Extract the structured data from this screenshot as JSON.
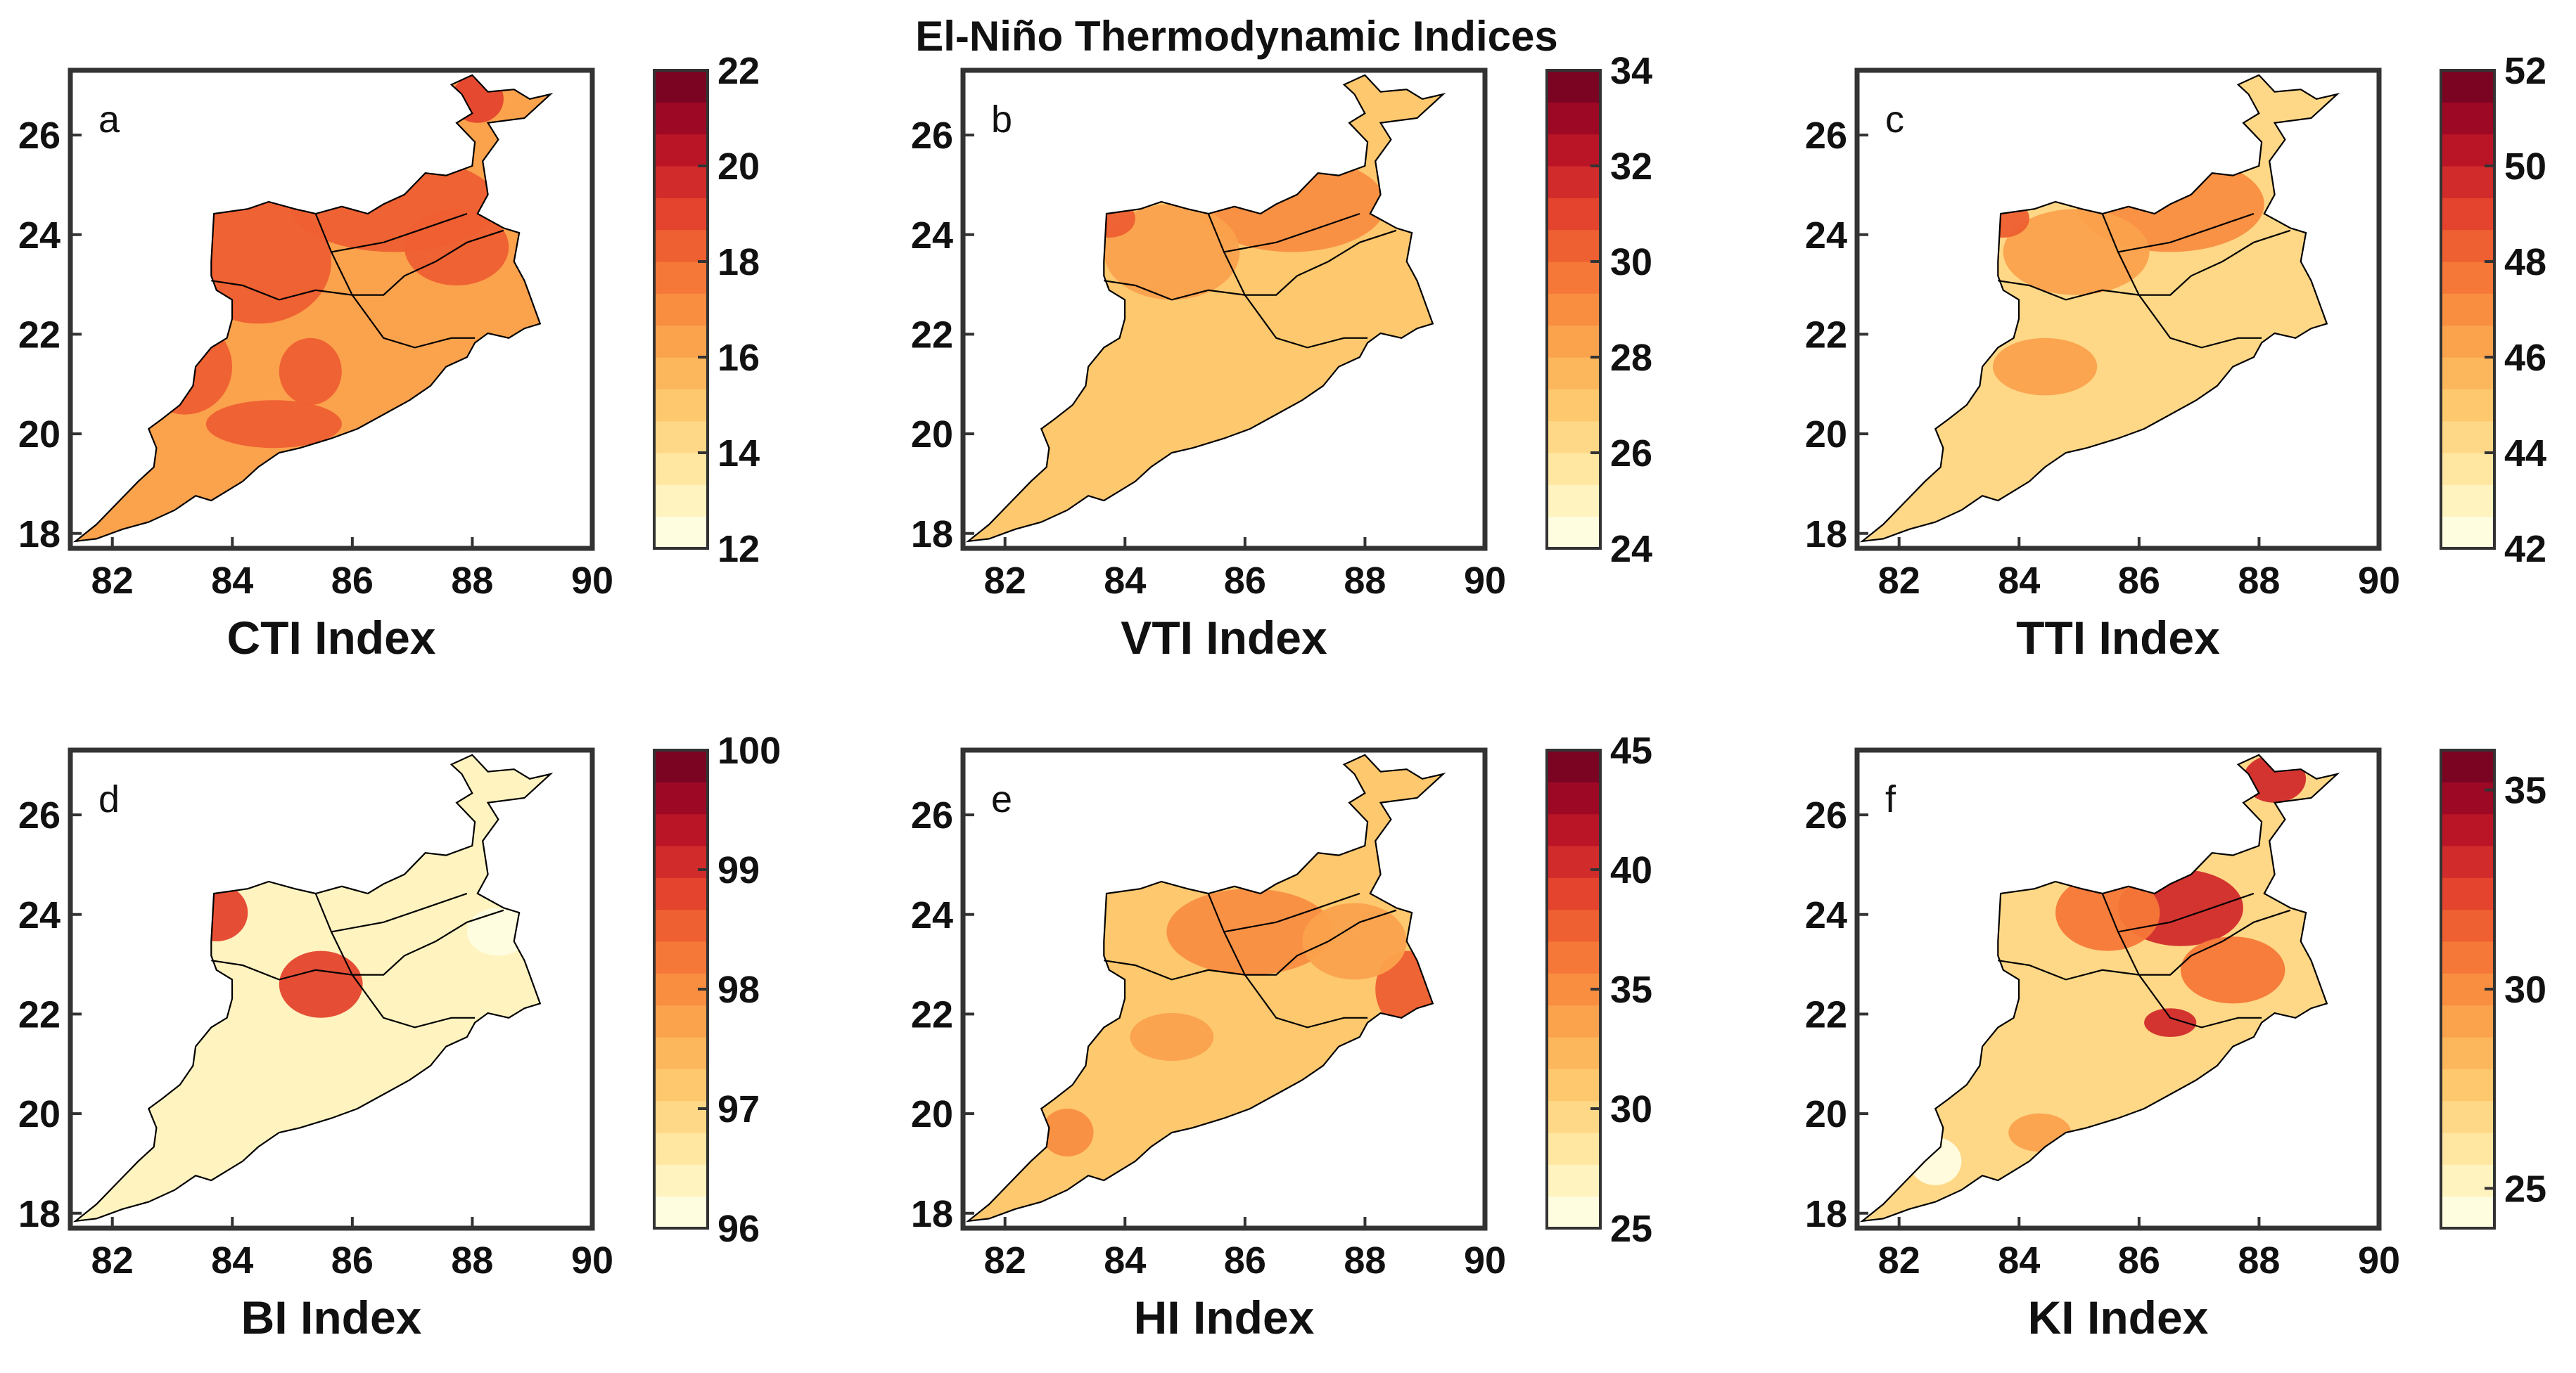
{
  "title": "El-Niño Thermodynamic Indices",
  "map_x_ticks": [
    "82",
    "84",
    "86",
    "88",
    "90"
  ],
  "map_y_ticks": [
    "18",
    "20",
    "22",
    "24",
    "26"
  ],
  "panels": [
    {
      "id": "cti",
      "letter": "a",
      "xlabel": "CTI Index",
      "cbar_ticks": [
        "12",
        "14",
        "16",
        "18",
        "20",
        "22"
      ],
      "cbar_range": [
        12,
        22
      ],
      "levels": [
        16.0,
        17.0,
        18.3,
        19.0
      ]
    },
    {
      "id": "vti",
      "letter": "b",
      "xlabel": "VTI Index",
      "cbar_ticks": [
        "24",
        "26",
        "28",
        "30",
        "32",
        "34"
      ],
      "cbar_range": [
        24,
        34
      ],
      "levels": [
        27.0,
        28.0,
        29.0,
        30.5
      ]
    },
    {
      "id": "tti",
      "letter": "c",
      "xlabel": "TTI Index",
      "cbar_ticks": [
        "42",
        "44",
        "46",
        "48",
        "50",
        "52"
      ],
      "cbar_range": [
        42,
        52
      ],
      "levels": [
        44.5,
        46.0,
        47.0,
        48.5
      ]
    },
    {
      "id": "bi",
      "letter": "d",
      "xlabel": "BI Index",
      "cbar_ticks": [
        "96",
        "97",
        "98",
        "99",
        "100"
      ],
      "cbar_range": [
        96,
        100
      ],
      "levels": [
        96.5,
        97.3,
        97.8,
        98.8
      ]
    },
    {
      "id": "hi",
      "letter": "e",
      "xlabel": "HI Index",
      "cbar_ticks": [
        "25",
        "30",
        "35",
        "40",
        "45"
      ],
      "cbar_range": [
        25,
        45
      ],
      "levels": [
        31.0,
        33.0,
        35.0,
        38.0
      ]
    },
    {
      "id": "ki",
      "letter": "f",
      "xlabel": "KI Index",
      "cbar_ticks": [
        "25",
        "30",
        "35"
      ],
      "cbar_range": [
        24,
        36
      ],
      "levels": [
        27.0,
        29.0,
        31.0,
        33.5
      ]
    }
  ],
  "colors": {
    "ramp": [
      "#fffde0",
      "#fff3c0",
      "#ffe7a2",
      "#fed887",
      "#fdc86e",
      "#fcb65c",
      "#fba24d",
      "#f98e41",
      "#f57838",
      "#ee5f31",
      "#e4442d",
      "#d22b2b",
      "#ba1527",
      "#9d0825",
      "#7a0422"
    ],
    "frame": "#333333",
    "border": "#000000"
  }
}
